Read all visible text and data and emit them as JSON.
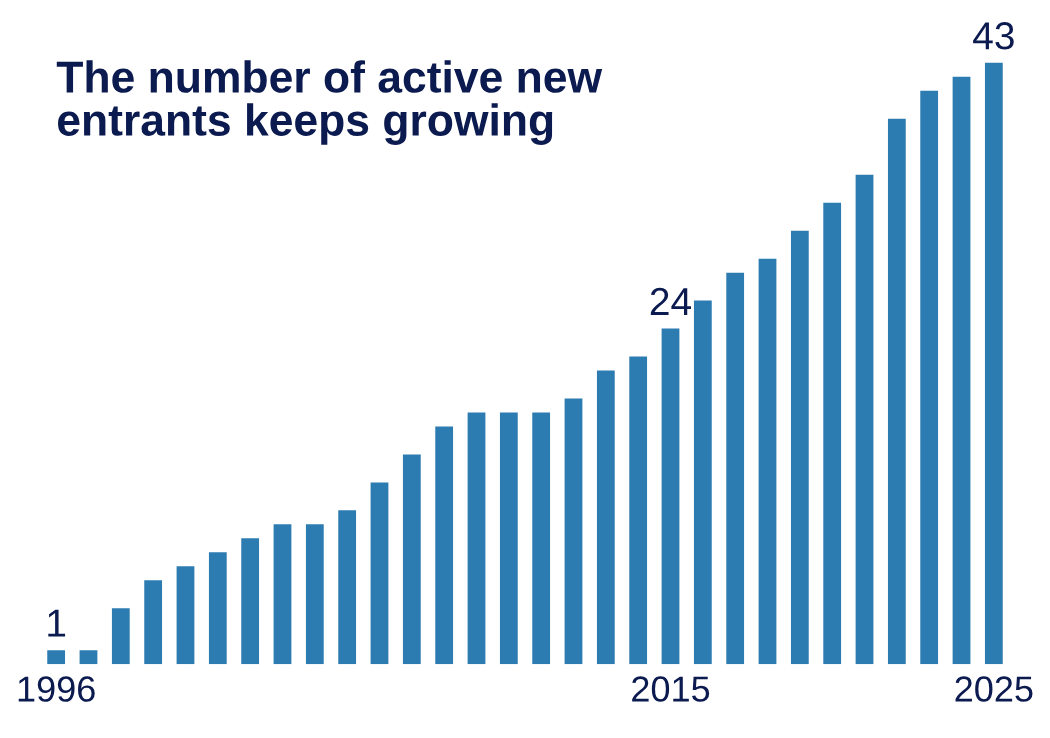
{
  "chart_data": {
    "type": "bar",
    "title": "The number of active new\nentrants keeps growing",
    "categories": [
      "1996",
      null,
      null,
      null,
      null,
      null,
      null,
      null,
      null,
      null,
      null,
      null,
      null,
      null,
      null,
      null,
      null,
      null,
      null,
      "2015",
      null,
      null,
      null,
      null,
      null,
      null,
      null,
      null,
      null,
      "2025"
    ],
    "values": [
      1,
      1,
      4,
      6,
      7,
      8,
      9,
      10,
      10,
      11,
      13,
      15,
      17,
      18,
      18,
      18,
      19,
      21,
      22,
      24,
      26,
      28,
      29,
      31,
      33,
      35,
      39,
      41,
      42,
      43
    ],
    "value_labels": [
      "1",
      null,
      null,
      null,
      null,
      null,
      null,
      null,
      null,
      null,
      null,
      null,
      null,
      null,
      null,
      null,
      null,
      null,
      null,
      "24",
      null,
      null,
      null,
      null,
      null,
      null,
      null,
      null,
      null,
      "43"
    ],
    "color": "#2c7bb1",
    "grid": false,
    "legend": false
  }
}
